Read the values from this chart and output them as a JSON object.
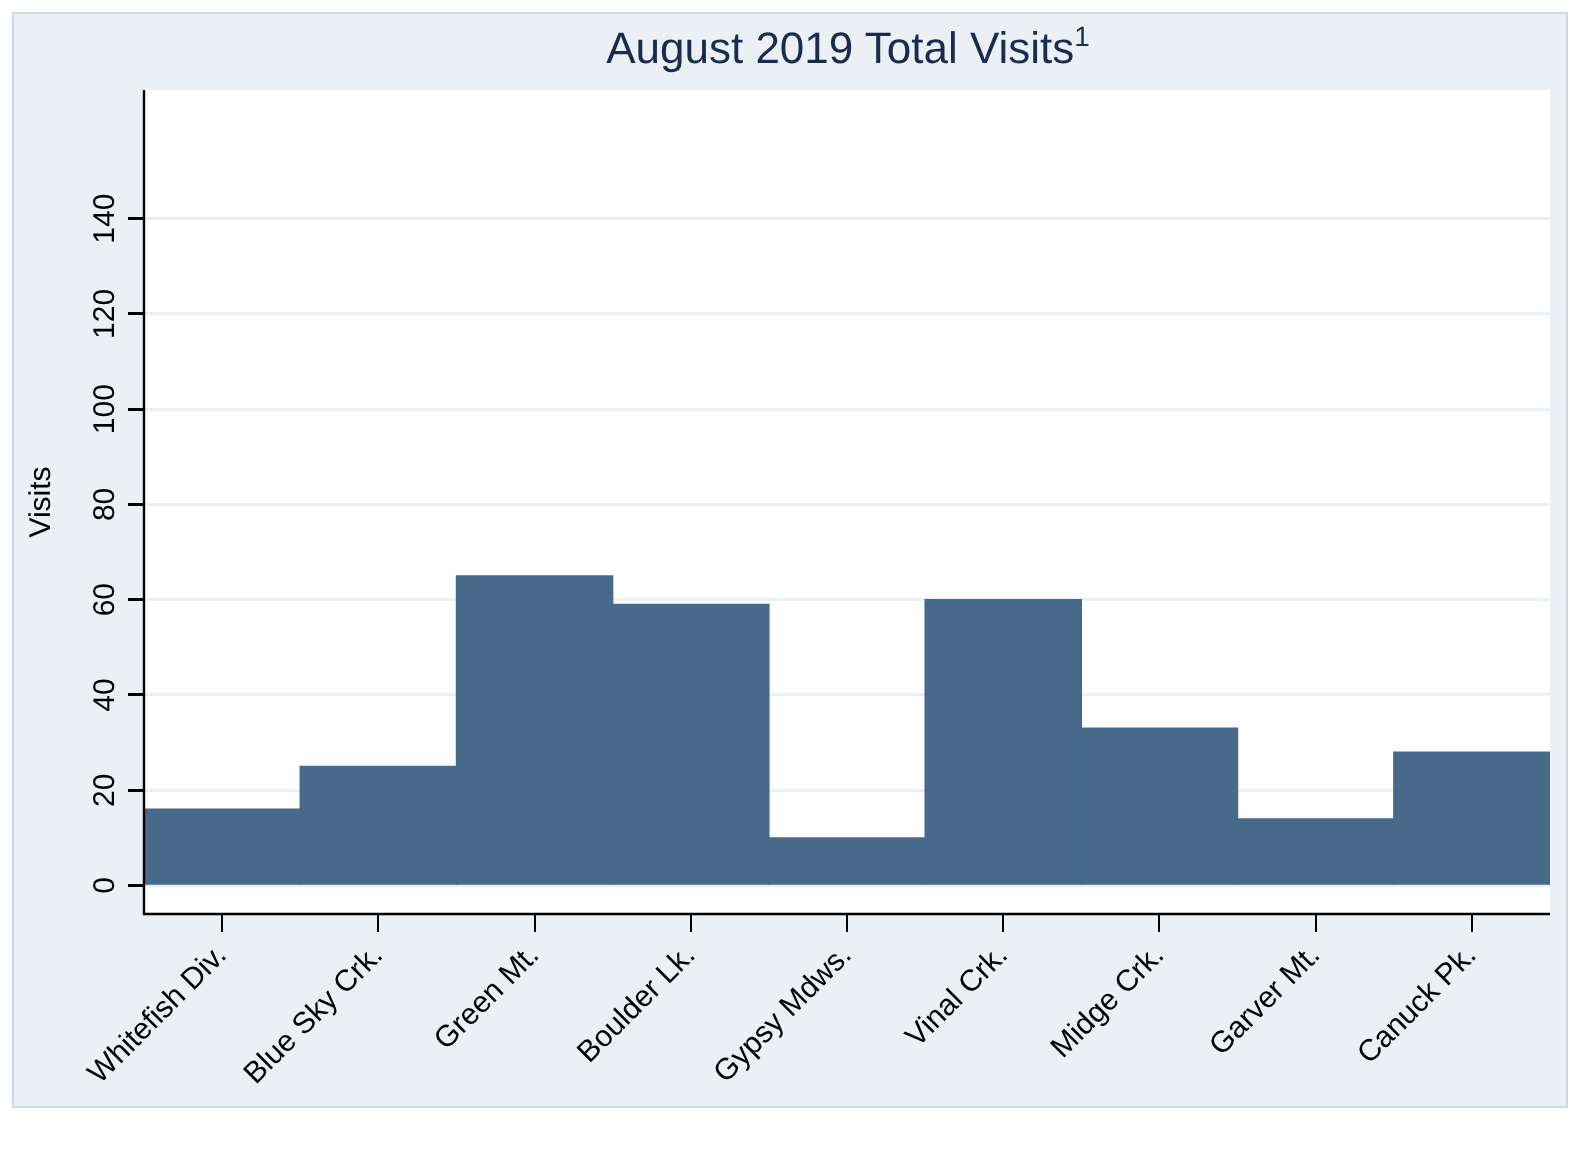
{
  "chart_data": {
    "type": "bar",
    "title": "August 2019 Total Visits$^{1}$",
    "ylabel": "Visits",
    "categories": [
      "Whitefish Div.",
      "Blue Sky Crk.",
      "Green Mt.",
      "Boulder Lk.",
      "Gypsy Mdws.",
      "Vinal Crk.",
      "Midge Crk.",
      "Garver Mt.",
      "Canuck Pk."
    ],
    "values": [
      16,
      25,
      65,
      59,
      10,
      60,
      33,
      14,
      28
    ],
    "color": "#476a8a",
    "ylim": [
      -6,
      167
    ],
    "yticks": [
      0,
      20,
      40,
      60,
      80,
      100,
      120,
      140
    ],
    "grid": "y",
    "legend": false
  }
}
